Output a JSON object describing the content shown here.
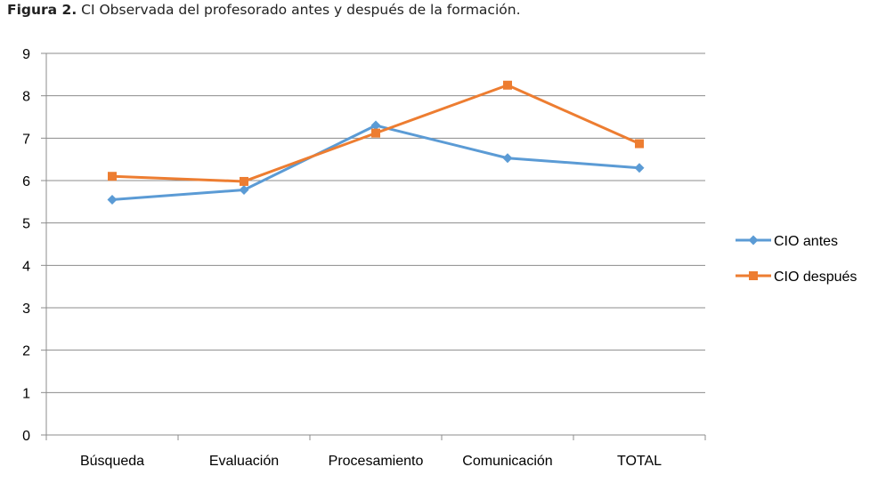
{
  "caption": {
    "lead": "Figura 2.",
    "text": "CI Observada del profesorado antes y después de la formación."
  },
  "chart_data": {
    "type": "line",
    "title": "",
    "xlabel": "",
    "ylabel": "",
    "ylim": [
      0,
      9
    ],
    "yticks": [
      "0",
      "1",
      "2",
      "3",
      "4",
      "5",
      "6",
      "7",
      "8",
      "9"
    ],
    "grid": true,
    "legend_position": "right",
    "categories": [
      "Búsqueda",
      "Evaluación",
      "Procesamiento",
      "Comunicación",
      "TOTAL"
    ],
    "series": [
      {
        "name": "CIO antes",
        "color": "#5B9BD5",
        "marker": "diamond",
        "values": [
          5.55,
          5.78,
          7.3,
          6.53,
          6.3
        ]
      },
      {
        "name": "CIO después",
        "color": "#ED7D31",
        "marker": "square",
        "values": [
          6.1,
          5.98,
          7.12,
          8.25,
          6.87
        ]
      }
    ]
  }
}
